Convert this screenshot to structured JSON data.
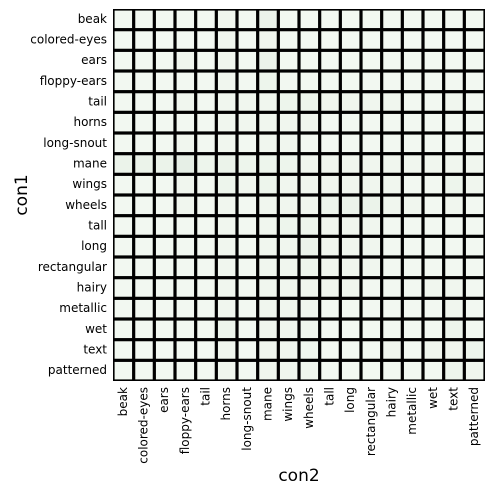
{
  "chart_data": {
    "type": "heatmap",
    "x_label": "con2",
    "y_label": "con1",
    "rows": [
      "beak",
      "colored-eyes",
      "ears",
      "floppy-ears",
      "tail",
      "horns",
      "long-snout",
      "mane",
      "wings",
      "wheels",
      "tall",
      "long",
      "rectangular",
      "hairy",
      "metallic",
      "wet",
      "text",
      "patterned"
    ],
    "columns": [
      "beak",
      "colored-eyes",
      "ears",
      "floppy-ears",
      "tail",
      "horns",
      "long-snout",
      "mane",
      "wings",
      "wheels",
      "tall",
      "long",
      "rectangular",
      "hairy",
      "metallic",
      "wet",
      "text",
      "patterned"
    ],
    "colormap": [
      "#f7fcf5",
      "#00441b"
    ],
    "vlim": [
      0,
      1
    ],
    "values": [
      [
        0.02,
        0.02,
        0.02,
        0.02,
        0.02,
        0.03,
        0.02,
        0.05,
        0.02,
        0.02,
        0.02,
        0.02,
        0.02,
        0.02,
        0.02,
        0.02,
        0.02,
        0.02
      ],
      [
        0.02,
        0.02,
        0.02,
        0.02,
        0.02,
        0.03,
        0.02,
        0.03,
        0.02,
        0.02,
        0.02,
        0.02,
        0.02,
        0.02,
        0.02,
        0.02,
        0.02,
        0.02
      ],
      [
        0.02,
        0.02,
        0.02,
        0.03,
        0.02,
        0.03,
        0.02,
        0.05,
        0.02,
        0.02,
        0.02,
        0.02,
        0.02,
        0.02,
        0.02,
        0.02,
        0.02,
        0.02
      ],
      [
        0.02,
        0.02,
        0.02,
        0.02,
        0.02,
        0.03,
        0.02,
        0.04,
        0.02,
        0.02,
        0.02,
        0.02,
        0.02,
        0.02,
        0.02,
        0.02,
        0.02,
        0.02
      ],
      [
        0.02,
        0.02,
        0.02,
        0.03,
        0.02,
        0.03,
        0.03,
        0.03,
        0.04,
        0.04,
        0.03,
        0.03,
        0.03,
        0.03,
        0.02,
        0.02,
        0.03,
        0.02
      ],
      [
        0.02,
        0.02,
        0.02,
        0.02,
        0.02,
        0.03,
        0.03,
        0.03,
        0.03,
        0.03,
        0.02,
        0.02,
        0.02,
        0.02,
        0.02,
        0.02,
        0.02,
        0.02
      ],
      [
        0.02,
        0.02,
        0.02,
        0.03,
        0.02,
        0.03,
        0.02,
        0.03,
        0.03,
        0.02,
        0.02,
        0.02,
        0.02,
        0.02,
        0.02,
        0.02,
        0.02,
        0.02
      ],
      [
        0.05,
        0.05,
        0.05,
        0.07,
        0.04,
        0.05,
        0.04,
        0.04,
        0.04,
        0.03,
        0.03,
        0.03,
        0.03,
        0.03,
        0.03,
        0.03,
        0.03,
        0.03
      ],
      [
        0.02,
        0.02,
        0.02,
        0.03,
        0.02,
        0.04,
        0.03,
        0.04,
        0.03,
        0.03,
        0.03,
        0.03,
        0.03,
        0.03,
        0.02,
        0.02,
        0.04,
        0.03
      ],
      [
        0.02,
        0.02,
        0.02,
        0.03,
        0.02,
        0.03,
        0.02,
        0.03,
        0.03,
        0.03,
        0.04,
        0.05,
        0.05,
        0.03,
        0.03,
        0.02,
        0.03,
        0.02
      ],
      [
        0.02,
        0.02,
        0.02,
        0.02,
        0.02,
        0.03,
        0.02,
        0.03,
        0.04,
        0.04,
        0.03,
        0.03,
        0.03,
        0.02,
        0.02,
        0.02,
        0.02,
        0.02
      ],
      [
        0.02,
        0.02,
        0.02,
        0.02,
        0.02,
        0.03,
        0.02,
        0.03,
        0.03,
        0.05,
        0.03,
        0.03,
        0.03,
        0.02,
        0.02,
        0.02,
        0.02,
        0.02
      ],
      [
        0.02,
        0.02,
        0.02,
        0.02,
        0.02,
        0.03,
        0.02,
        0.03,
        0.03,
        0.04,
        0.03,
        0.03,
        0.03,
        0.02,
        0.02,
        0.02,
        0.02,
        0.02
      ],
      [
        0.02,
        0.02,
        0.02,
        0.02,
        0.02,
        0.03,
        0.02,
        0.03,
        0.03,
        0.03,
        0.03,
        0.03,
        0.02,
        0.02,
        0.02,
        0.03,
        0.03,
        0.02
      ],
      [
        0.02,
        0.02,
        0.02,
        0.02,
        0.02,
        0.03,
        0.02,
        0.03,
        0.03,
        0.03,
        0.02,
        0.02,
        0.02,
        0.02,
        0.02,
        0.02,
        0.03,
        0.02
      ],
      [
        0.02,
        0.02,
        0.02,
        0.02,
        0.02,
        0.04,
        0.02,
        0.03,
        0.03,
        0.03,
        0.02,
        0.02,
        0.02,
        0.02,
        0.02,
        0.02,
        0.04,
        0.02
      ],
      [
        0.02,
        0.02,
        0.02,
        0.02,
        0.02,
        0.03,
        0.02,
        0.03,
        0.03,
        0.03,
        0.02,
        0.02,
        0.02,
        0.03,
        0.02,
        0.03,
        0.03,
        0.04
      ],
      [
        0.02,
        0.02,
        0.02,
        0.02,
        0.02,
        0.03,
        0.02,
        0.03,
        0.03,
        0.03,
        0.02,
        0.02,
        0.02,
        0.02,
        0.02,
        0.02,
        0.04,
        0.03
      ]
    ]
  }
}
